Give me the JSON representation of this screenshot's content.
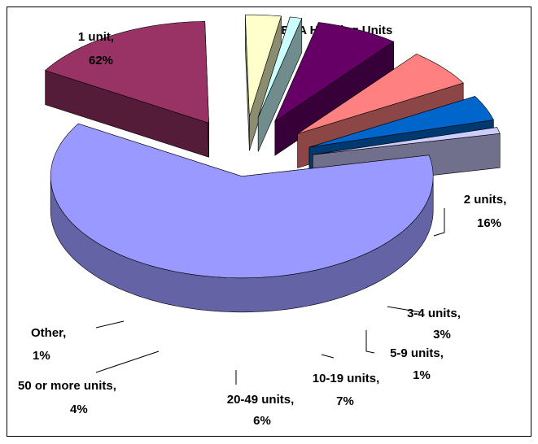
{
  "chart_data": {
    "type": "pie",
    "title": "GENA Housing Units",
    "categories": [
      "1 unit,",
      "2 units,",
      "3-4 units,",
      "5-9 units,",
      "10-19 units,",
      "20-49 units,",
      "50 or more units,",
      "Other,"
    ],
    "values": [
      62,
      16,
      3,
      1,
      7,
      6,
      4,
      1
    ],
    "value_labels": [
      "62%",
      "16%",
      "3%",
      "1%",
      "7%",
      "6%",
      "4%",
      "1%"
    ],
    "colors": [
      "#9999ff",
      "#993366",
      "#ffffcc",
      "#ccffff",
      "#660066",
      "#ff8080",
      "#0066cc",
      "#ccccff"
    ]
  }
}
